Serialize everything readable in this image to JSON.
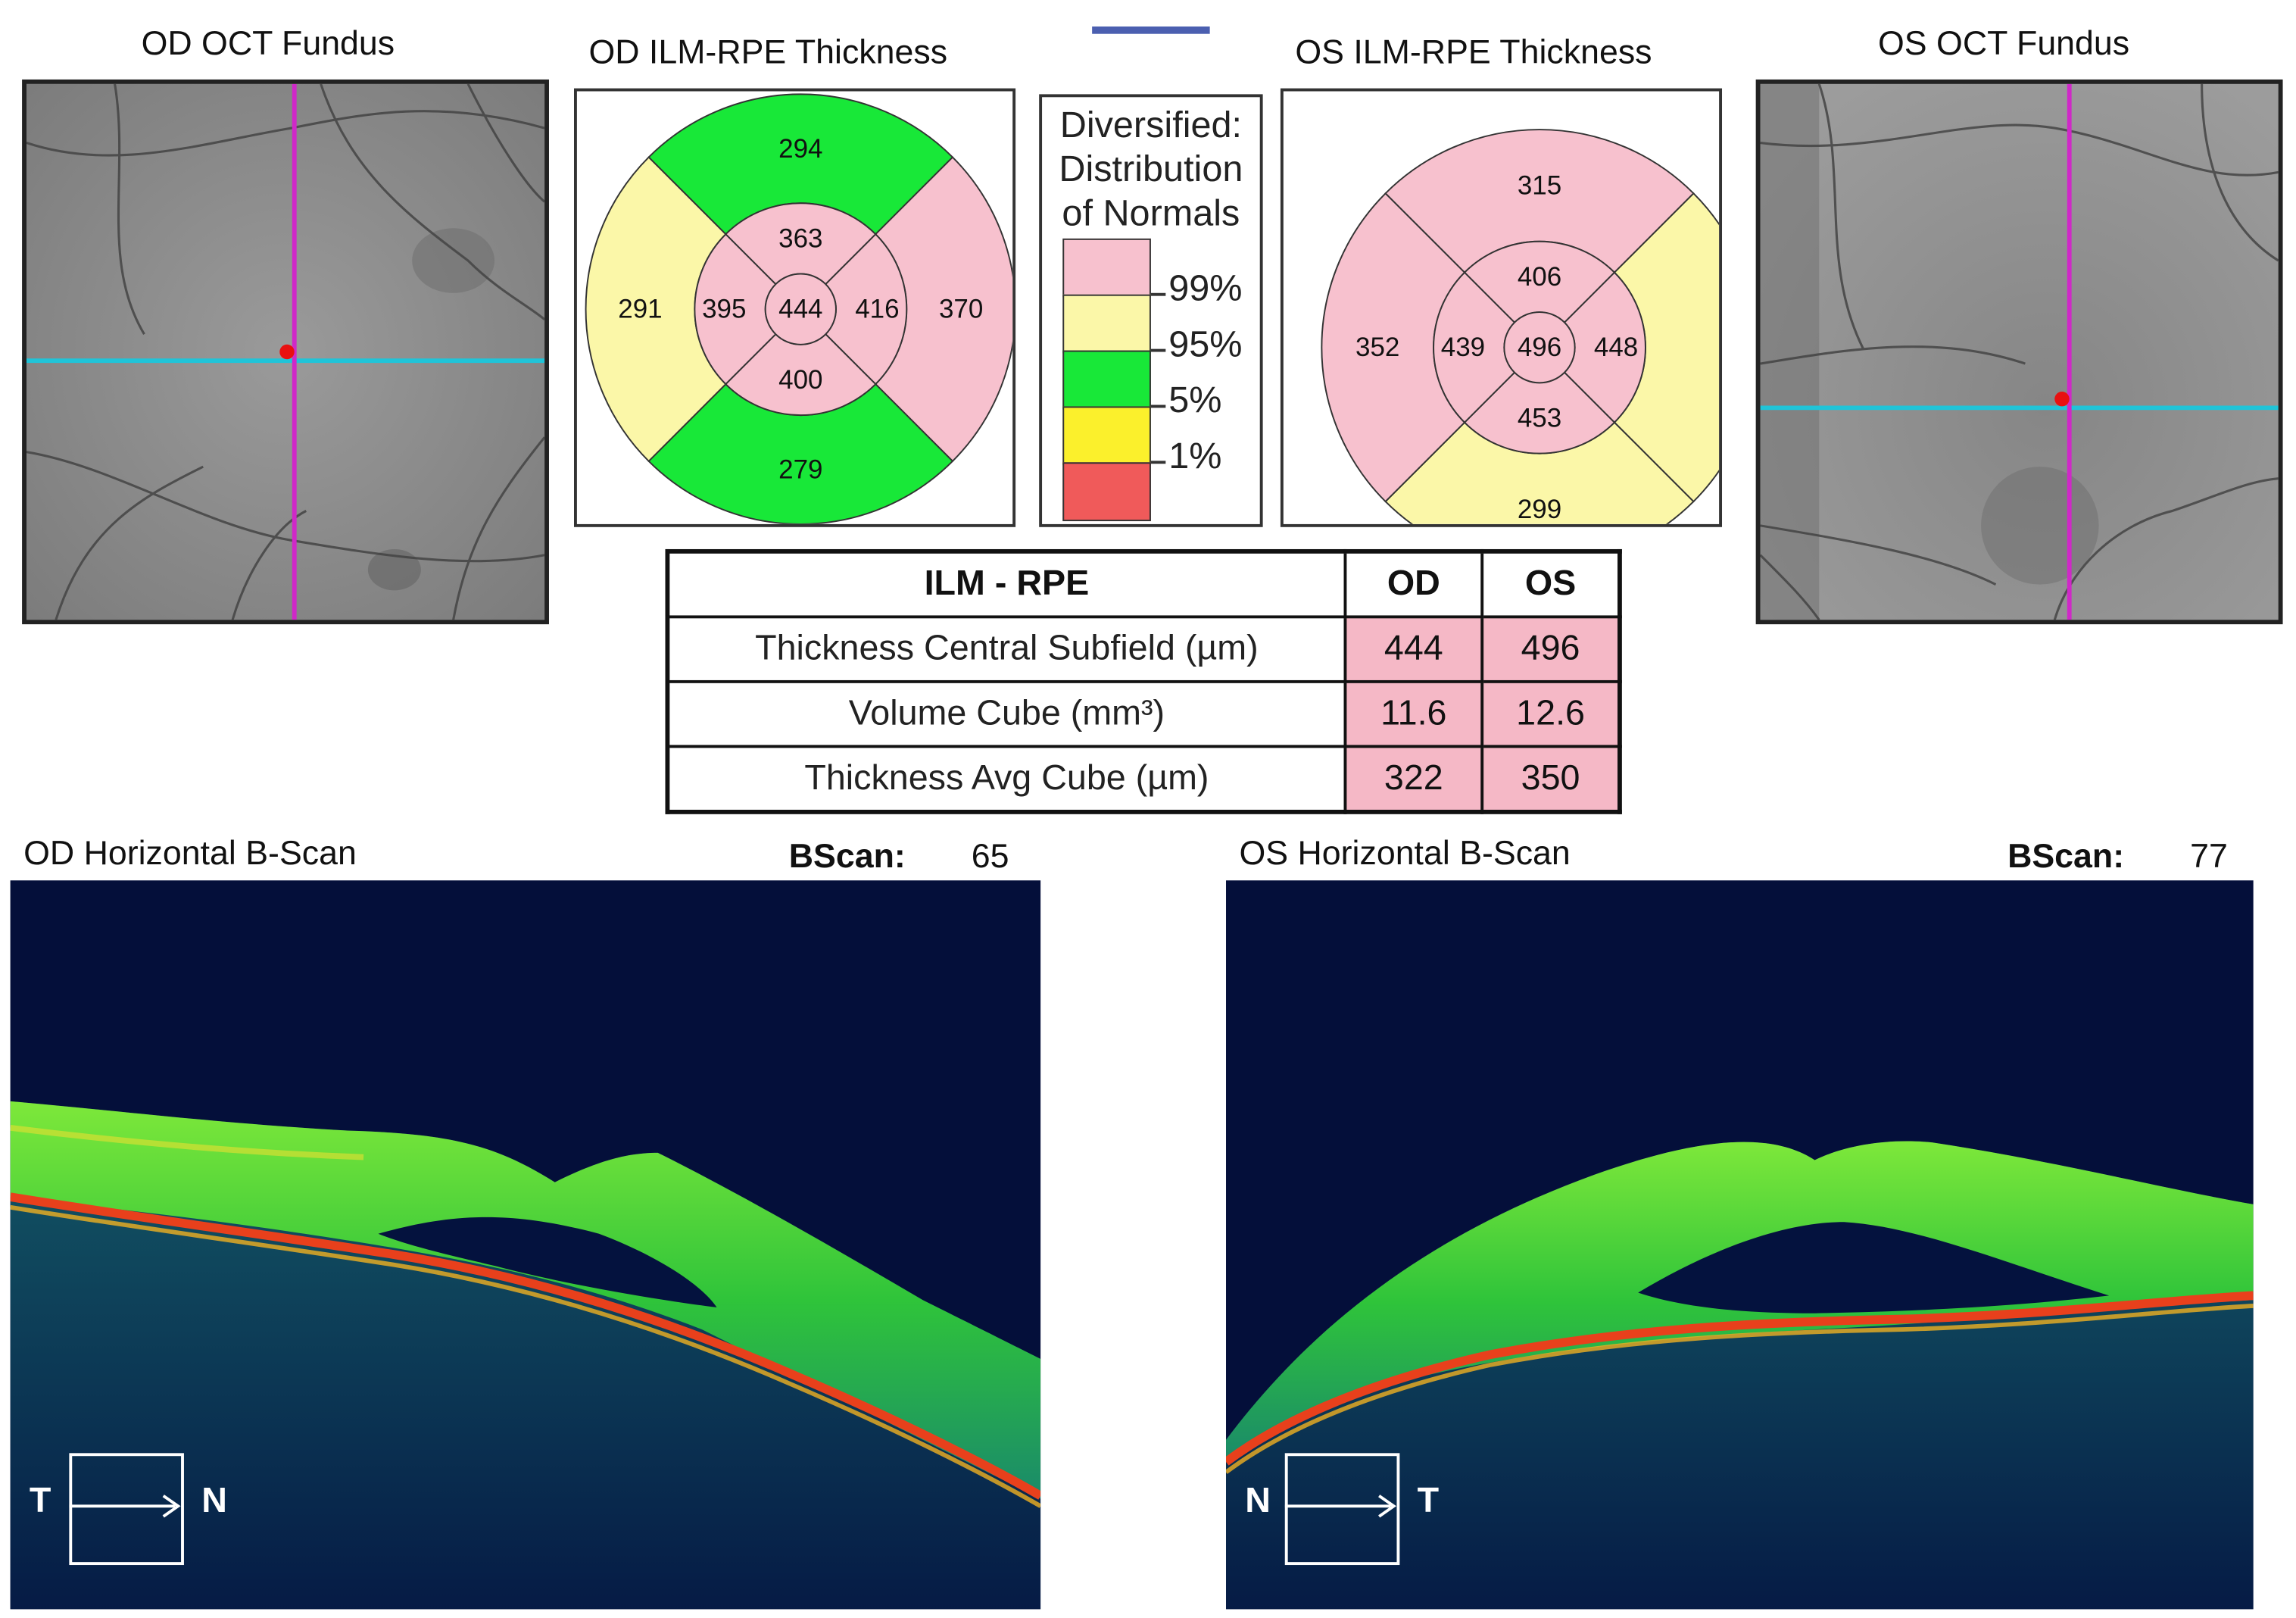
{
  "od_fundus": {
    "title": "OD OCT Fundus"
  },
  "os_fundus": {
    "title": "OS OCT Fundus"
  },
  "od_thickness": {
    "title": "OD ILM-RPE Thickness",
    "values": {
      "outer_top": "294",
      "outer_left": "291",
      "outer_right": "370",
      "outer_bottom": "279",
      "inner_top": "363",
      "inner_left": "395",
      "inner_right": "416",
      "inner_bottom": "400",
      "center": "444"
    },
    "colors": {
      "outer_top": "#18e838",
      "outer_left": "#fbf7a8",
      "outer_right": "#f7c1ce",
      "outer_bottom": "#18e838",
      "inner": "#f7c1ce",
      "center": "#f7c1ce"
    }
  },
  "os_thickness": {
    "title": "OS ILM-RPE Thickness",
    "values": {
      "outer_top": "315",
      "outer_left": "352",
      "outer_right": "",
      "outer_bottom": "299",
      "inner_top": "406",
      "inner_left": "439",
      "inner_right": "448",
      "inner_bottom": "453",
      "center": "496"
    },
    "colors": {
      "outer_top": "#f7c1ce",
      "outer_left": "#f7c1ce",
      "outer_right": "#fbf7a8",
      "outer_bottom": "#fbf7a8",
      "inner": "#f7c1ce",
      "center": "#f7c1ce"
    }
  },
  "legend": {
    "title_line1": "Diversified:",
    "title_line2": "Distribution",
    "title_line3": "of Normals",
    "items": [
      {
        "label": "99%",
        "color": "#f7c1ce"
      },
      {
        "label": "95%",
        "color": "#fbf7a8"
      },
      {
        "label": "5%",
        "color": "#18e838"
      },
      {
        "label": "1%",
        "color": "#fbf02c"
      },
      {
        "label": "",
        "color": "#f05a5a"
      }
    ]
  },
  "table": {
    "header": {
      "label": "ILM - RPE",
      "od": "OD",
      "os": "OS"
    },
    "rows": [
      {
        "label": "Thickness Central Subfield (µm)",
        "od": "444",
        "os": "496"
      },
      {
        "label": "Volume Cube (mm³)",
        "od": "11.6",
        "os": "12.6"
      },
      {
        "label": "Thickness Avg Cube (µm)",
        "od": "322",
        "os": "350"
      }
    ]
  },
  "od_bscan": {
    "title": "OD Horizontal B-Scan",
    "bscan_label": "BScan:",
    "bscan_number": "65",
    "orient_left": "T",
    "orient_right": "N"
  },
  "os_bscan": {
    "title": "OS Horizontal B-Scan",
    "bscan_label": "BScan:",
    "bscan_number": "77",
    "orient_left": "N",
    "orient_right": "T"
  },
  "colors": {
    "scan_background": "#040f3a",
    "retina_green": "#3fd43a",
    "rpe_red": "#e8401c",
    "horizontal_line": "#20c4d8",
    "vertical_line": "#d028c8",
    "fixation_dot": "#e81010"
  }
}
